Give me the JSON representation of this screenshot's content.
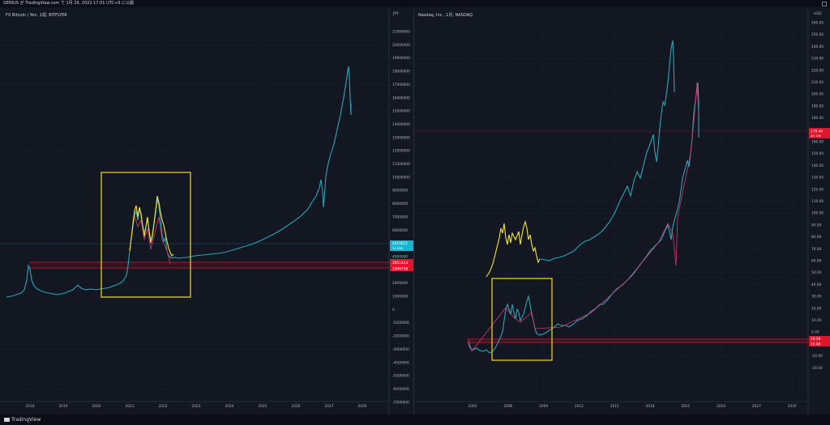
{
  "window": {
    "title": "GENIUS が TradingView.com で 1月 29, 2022 17:01 UTC+9 に公開"
  },
  "footer": {
    "logo": "TradingView"
  },
  "colors": {
    "bg": "#131722",
    "teal": "#26a69a",
    "cyan": "#2aa5b8",
    "yellow": "#f5e52c",
    "red": "#e0142b",
    "pink": "#d63972",
    "box": "#d6bf2e"
  },
  "left": {
    "title": "FX Bitcoin / Yen, 1週, BITFLYER",
    "unit": "JPY",
    "price_badge": "4415611",
    "price_badge_sub": "11:39h",
    "level_badges": [
      "2851424",
      "2406758"
    ],
    "price_ticks": [
      "21000000",
      "20000000",
      "19000000",
      "18000000",
      "17000000",
      "16000000",
      "15000000",
      "14000000",
      "13000000",
      "12000000",
      "11000000",
      "10000000",
      "9000000",
      "8000000",
      "7000000",
      "6000000",
      "5000000",
      "4000000",
      "3000000",
      "2000000",
      "1000000",
      "0",
      "-1000000",
      "-2000000",
      "-3000000",
      "-4000000",
      "-5000000",
      "-6000000",
      "-7000000"
    ],
    "year_ticks": [
      "2018",
      "2019",
      "2020",
      "2021",
      "2022",
      "2023",
      "2024",
      "2025",
      "2026",
      "2027",
      "2028"
    ]
  },
  "right": {
    "title": "Nasdaq, Inc., 1月, NASDAQ",
    "unit": "USD",
    "price_badge": "179.44",
    "price_badge_sub": "2d 15h",
    "level_badges": [
      "18.50",
      "16.00"
    ],
    "price_ticks": [
      "260.00",
      "250.00",
      "240.00",
      "230.00",
      "220.00",
      "210.00",
      "200.00",
      "190.00",
      "180.00",
      "170.00",
      "160.00",
      "150.00",
      "140.00",
      "130.00",
      "120.00",
      "110.00",
      "100.00",
      "90.00",
      "80.00",
      "70.00",
      "60.00",
      "50.00",
      "40.00",
      "30.00",
      "20.00",
      "10.00",
      "0.00",
      "-10.00",
      "-20.00",
      "-30.00"
    ],
    "year_ticks": [
      "2003",
      "2006",
      "2009",
      "2012",
      "2015",
      "2018",
      "2021",
      "2024",
      "2027",
      "2030"
    ]
  }
}
